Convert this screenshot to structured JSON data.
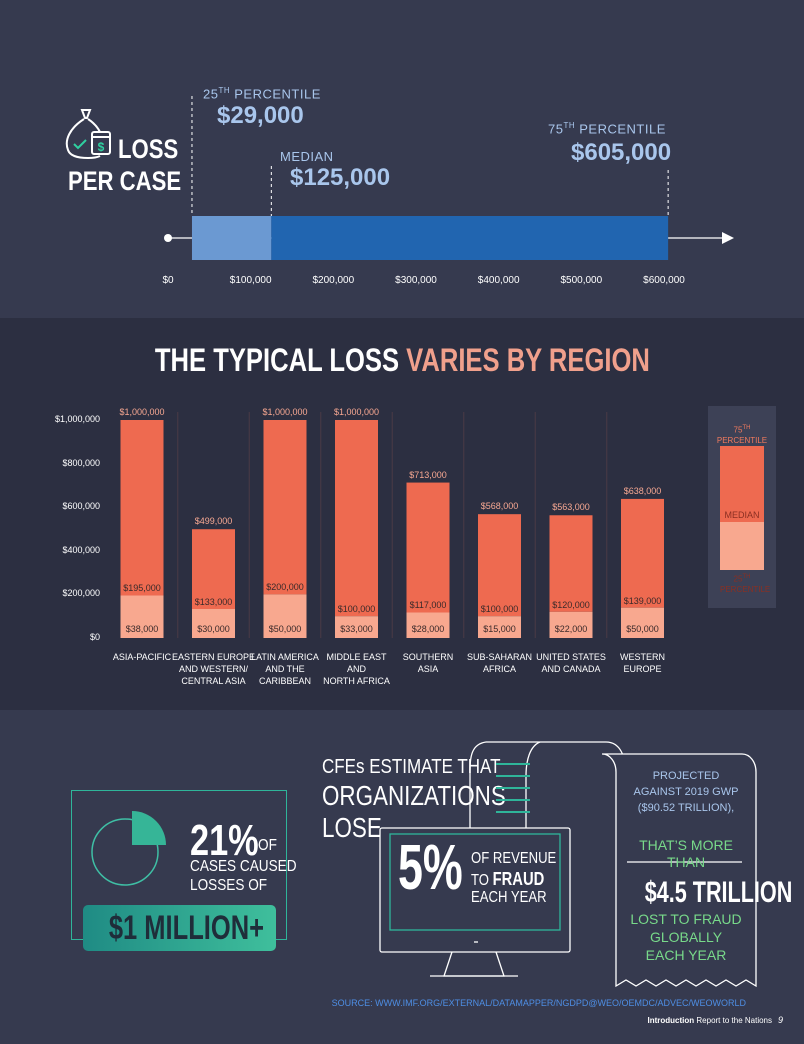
{
  "loss_per_case": {
    "title_line1": "LOSS",
    "title_line2": "PER CASE",
    "p25_label": "25",
    "p25_sup": "TH",
    "p25_label_rest": " PERCENTILE",
    "p25_value": "$29,000",
    "median_label": "MEDIAN",
    "median_value": "$125,000",
    "p75_label": "75",
    "p75_sup": "TH",
    "p75_label_rest": " PERCENTILE",
    "p75_value": "$605,000",
    "icon": "money-bag-icon"
  },
  "chart_data": [
    {
      "type": "bar",
      "title": "LOSS PER CASE",
      "x_ticks": [
        "$0",
        "$100,000",
        "$200,000",
        "$300,000",
        "$400,000",
        "$500,000",
        "$600,000"
      ],
      "xlim": [
        0,
        600000
      ],
      "p25": 29000,
      "median": 125000,
      "p75": 605000,
      "colors": {
        "low": "#6b99d2",
        "high": "#2165b0"
      }
    },
    {
      "type": "bar",
      "title_white": "THE TYPICAL LOSS ",
      "title_accent": "VARIES BY REGION",
      "ylim": [
        0,
        1000000
      ],
      "y_ticks": [
        "$0",
        "$200,000",
        "$400,000",
        "$600,000",
        "$800,000",
        "$1,000,000"
      ],
      "categories": [
        "ASIA-PACIFIC",
        "EASTERN EUROPE\nAND WESTERN/\nCENTRAL ASIA",
        "LATIN AMERICA\nAND THE\nCARIBBEAN",
        "MIDDLE EAST\nAND\nNORTH AFRICA",
        "SOUTHERN\nASIA",
        "SUB-SAHARAN\nAFRICA",
        "UNITED STATES\nAND CANADA",
        "WESTERN\nEUROPE"
      ],
      "series": [
        {
          "name": "75TH PERCENTILE",
          "values": [
            1000000,
            499000,
            1000000,
            1000000,
            713000,
            568000,
            563000,
            638000
          ],
          "labels": [
            "$1,000,000",
            "$499,000",
            "$1,000,000",
            "$1,000,000",
            "$713,000",
            "$568,000",
            "$563,000",
            "$638,000"
          ]
        },
        {
          "name": "MEDIAN",
          "values": [
            195000,
            133000,
            200000,
            100000,
            117000,
            100000,
            120000,
            139000
          ],
          "labels": [
            "$195,000",
            "$133,000",
            "$200,000",
            "$100,000",
            "$117,000",
            "$100,000",
            "$120,000",
            "$139,000"
          ]
        },
        {
          "name": "25TH PERCENTILE",
          "values": [
            38000,
            30000,
            50000,
            33000,
            28000,
            15000,
            22000,
            50000
          ],
          "labels": [
            "$38,000",
            "$30,000",
            "$50,000",
            "$33,000",
            "$28,000",
            "$15,000",
            "$22,000",
            "$50,000"
          ]
        }
      ],
      "colors": {
        "upper": "#ee6a50",
        "lower": "#f8a88f"
      }
    }
  ],
  "legend": {
    "p75_a": "75",
    "p75_sup": "TH",
    "p75_b": "PERCENTILE",
    "median": "MEDIAN",
    "p25_a": "25",
    "p25_sup": "TH",
    "p25_b": "PERCENTILE"
  },
  "million": {
    "percent": "21%",
    "of": "OF",
    "line2": "CASES CAUSED",
    "line3": "LOSSES OF",
    "badge": "$1 MILLION+",
    "icon": "pie-chart-icon"
  },
  "estimate": {
    "line1": "CFEs ESTIMATE THAT",
    "line2": "ORGANIZATIONS",
    "line3": "LOSE",
    "big": "5%",
    "rev1": "OF REVENUE",
    "rev2a": "TO ",
    "rev2b": "FRAUD",
    "rev3": "EACH YEAR",
    "icon": "monitor-receipt-icon"
  },
  "receipt": {
    "l1": "PROJECTED",
    "l2": "AGAINST 2019 GWP",
    "l3": "($90.52 TRILLION),",
    "l4": "THAT’S MORE",
    "l5": "THAN",
    "l6": "$4.5 TRILLION",
    "l7": "LOST TO FRAUD",
    "l8": "GLOBALLY",
    "l9": "EACH YEAR"
  },
  "footer": {
    "source": "SOURCE: WWW.IMF.ORG/EXTERNAL/DATAMAPPER/NGDPD@WEO/OEMDC/ADVEC/WEOWORLD",
    "section": "Introduction",
    "report": "Report to the Nations",
    "page": "9"
  }
}
